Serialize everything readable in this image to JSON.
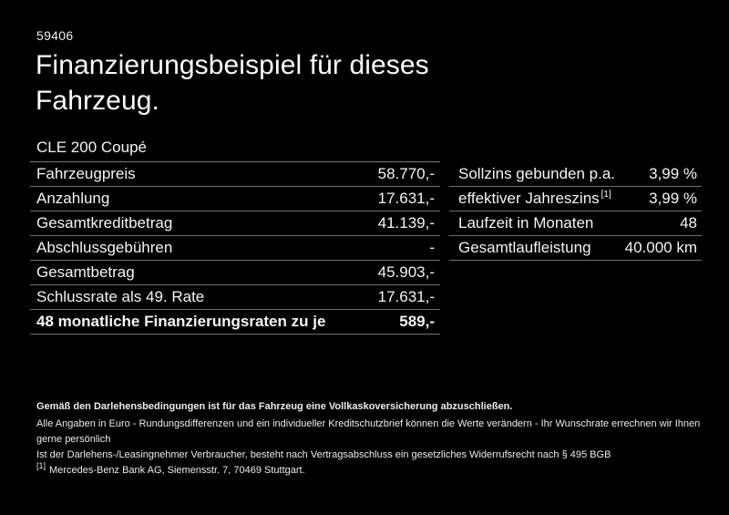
{
  "page": {
    "ref_number": "59406",
    "title": "Finanzierungsbeispiel für dieses Fahrzeug.",
    "model": "CLE 200 Coupé"
  },
  "finance_table": {
    "rows": [
      {
        "label": "Fahrzeugpreis",
        "value": "58.770,-"
      },
      {
        "label": "Anzahlung",
        "value": "17.631,-"
      },
      {
        "label": "Gesamtkreditbetrag",
        "value": "41.139,-"
      },
      {
        "label": "Abschlussgebühren",
        "value": "-"
      },
      {
        "label": "Gesamtbetrag",
        "value": "45.903,-"
      },
      {
        "label": "Schlussrate als 49. Rate",
        "value": "17.631,-"
      },
      {
        "label": "48 monatliche Finanzierungsraten zu je",
        "value": "589,-"
      }
    ]
  },
  "conditions_table": {
    "rows": [
      {
        "label": "Sollzins gebunden p.a.",
        "value": "3,99 %"
      },
      {
        "label": "effektiver Jahreszins",
        "sup": "[1]",
        "value": "3,99 %"
      },
      {
        "label": "Laufzeit in Monaten",
        "value": "48"
      },
      {
        "label": "Gesamtlaufleistung",
        "value": "40.000 km"
      }
    ]
  },
  "footer": {
    "bold_note": "Gemäß den Darlehensbedingungen ist für das Fahrzeug eine Vollkaskoversicherung abzuschließen.",
    "note_line1": "Alle Angaben in Euro - Rundungsdifferenzen und ein individueller Kreditschutzbrief können die Werte verändern - Ihr Wunschrate errechnen wir Ihnen gerne persönlich",
    "note_line2": "Ist der Darlehens-/Leasingnehmer Verbraucher, besteht nach Vertragsabschluss ein gesetzliches Widerrufsrecht nach § 495 BGB",
    "footnote_marker": "[1]",
    "footnote_text": "Mercedes-Benz Bank AG, Siemensstr. 7, 70469 Stuttgart."
  },
  "colors": {
    "background": "#000000",
    "text": "#f4f4f4",
    "divider": "#6e6e6e"
  }
}
